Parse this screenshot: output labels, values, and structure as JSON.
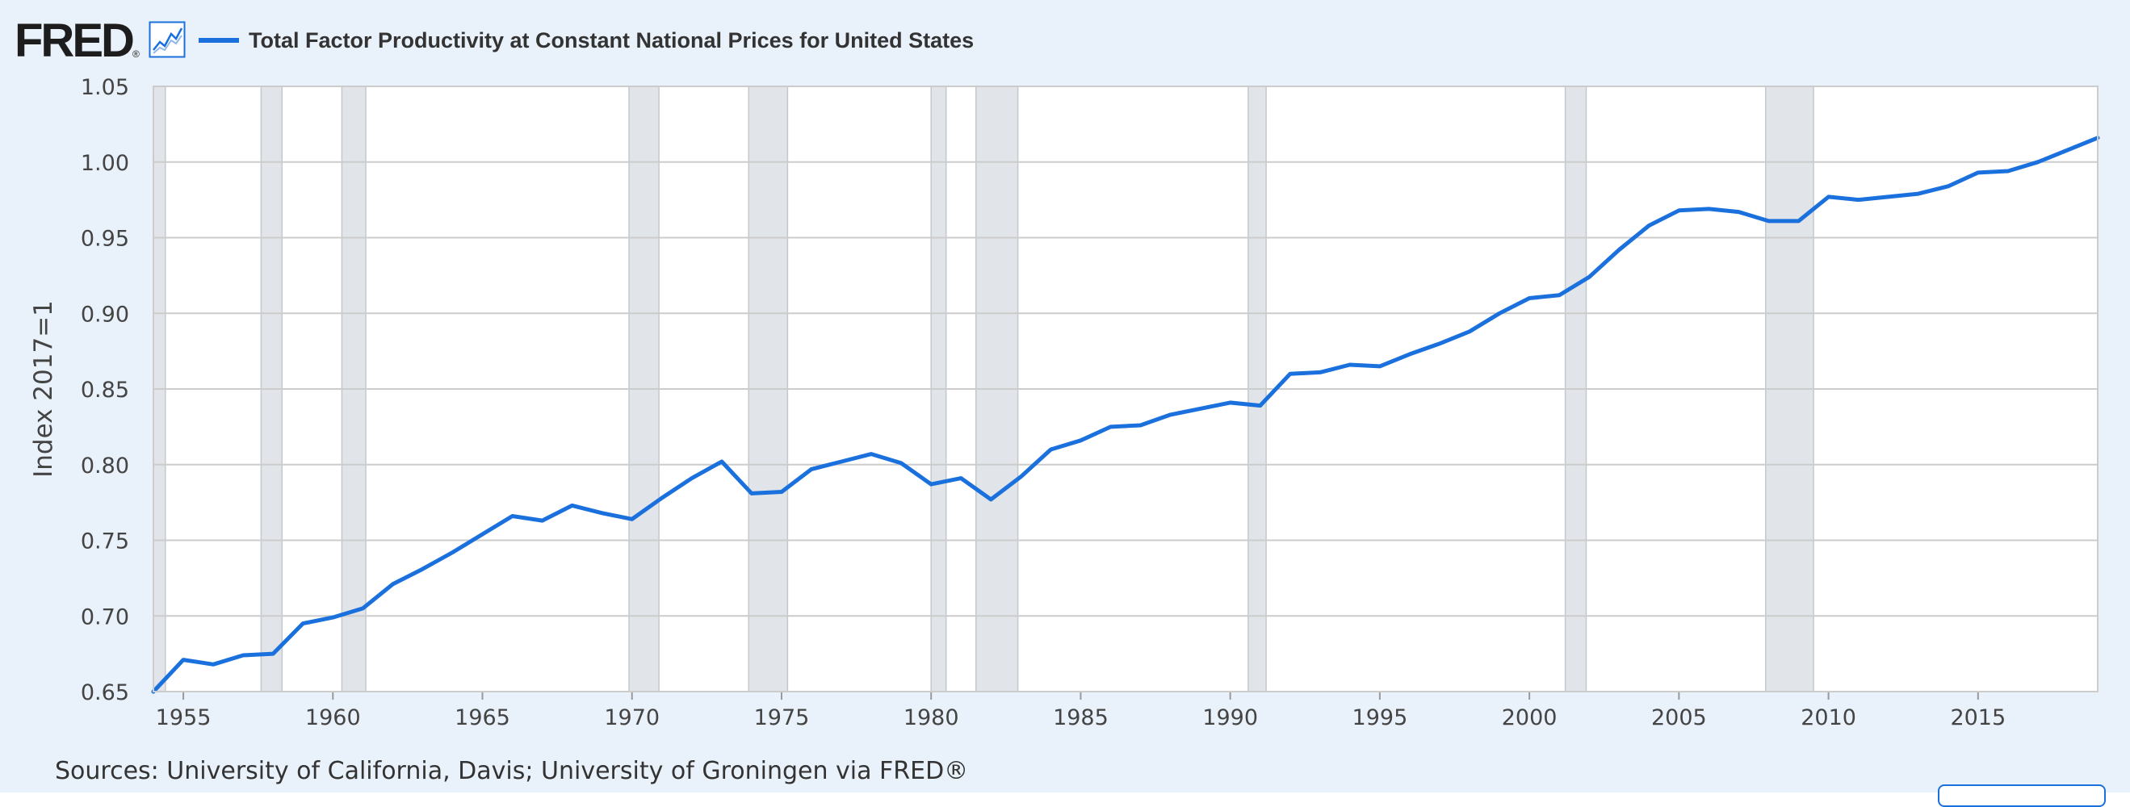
{
  "header": {
    "logo_text": "FRED",
    "logo_reg": "®",
    "graph_icon": "line-chart-icon"
  },
  "chart_data": {
    "type": "line",
    "title": "",
    "xlabel": "",
    "ylabel": "Index 2017=1",
    "xlim": [
      1954,
      2019
    ],
    "ylim": [
      0.65,
      1.05
    ],
    "grid": true,
    "legend_position": "top",
    "yticks": [
      "0.65",
      "0.70",
      "0.75",
      "0.80",
      "0.85",
      "0.90",
      "0.95",
      "1.00",
      "1.05"
    ],
    "xticks": [
      "1955",
      "1960",
      "1965",
      "1970",
      "1975",
      "1980",
      "1985",
      "1990",
      "1995",
      "2000",
      "2005",
      "2010",
      "2015"
    ],
    "colors": {
      "series": "#1a70dc",
      "recession": "#e1e4e8",
      "grid": "#cccccc",
      "plot_bg": "#ffffff"
    },
    "recessions": [
      [
        1953.6,
        1954.4
      ],
      [
        1957.6,
        1958.3
      ],
      [
        1960.3,
        1961.1
      ],
      [
        1969.9,
        1970.9
      ],
      [
        1973.9,
        1975.2
      ],
      [
        1980.0,
        1980.5
      ],
      [
        1981.5,
        1982.9
      ],
      [
        1990.6,
        1991.2
      ],
      [
        2001.2,
        2001.9
      ],
      [
        2007.9,
        2009.5
      ]
    ],
    "series": [
      {
        "name": "Total Factor Productivity at Constant National Prices for United States",
        "x": [
          1954,
          1955,
          1956,
          1957,
          1958,
          1959,
          1960,
          1961,
          1962,
          1963,
          1964,
          1965,
          1966,
          1967,
          1968,
          1969,
          1970,
          1971,
          1972,
          1973,
          1974,
          1975,
          1976,
          1977,
          1978,
          1979,
          1980,
          1981,
          1982,
          1983,
          1984,
          1985,
          1986,
          1987,
          1988,
          1989,
          1990,
          1991,
          1992,
          1993,
          1994,
          1995,
          1996,
          1997,
          1998,
          1999,
          2000,
          2001,
          2002,
          2003,
          2004,
          2005,
          2006,
          2007,
          2008,
          2009,
          2010,
          2011,
          2012,
          2013,
          2014,
          2015,
          2016,
          2017,
          2018,
          2019
        ],
        "values": [
          0.65,
          0.671,
          0.668,
          0.674,
          0.675,
          0.695,
          0.699,
          0.705,
          0.721,
          0.731,
          0.742,
          0.754,
          0.766,
          0.763,
          0.773,
          0.768,
          0.764,
          0.778,
          0.791,
          0.802,
          0.781,
          0.782,
          0.797,
          0.802,
          0.807,
          0.801,
          0.787,
          0.791,
          0.777,
          0.792,
          0.81,
          0.816,
          0.825,
          0.826,
          0.833,
          0.837,
          0.841,
          0.839,
          0.86,
          0.861,
          0.866,
          0.865,
          0.873,
          0.88,
          0.888,
          0.9,
          0.91,
          0.912,
          0.924,
          0.942,
          0.958,
          0.968,
          0.969,
          0.967,
          0.961,
          0.961,
          0.977,
          0.975,
          0.977,
          0.979,
          0.984,
          0.993,
          0.994,
          1.0,
          1.008,
          1.016
        ]
      }
    ]
  },
  "sources": "Sources: University of California, Davis; University of Groningen via FRED®"
}
